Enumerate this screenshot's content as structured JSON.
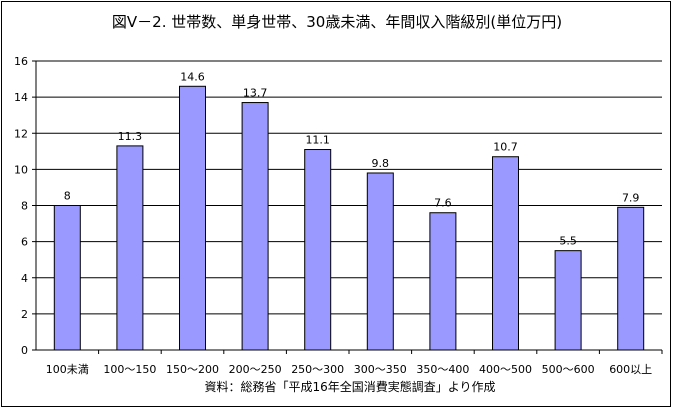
{
  "chart_data": {
    "type": "bar",
    "title": "図Ⅴ－2. 世帯数、単身世帯、30歳未満、年間収入階級別(単位万円)",
    "categories": [
      "100未満",
      "100～150",
      "150～200",
      "200～250",
      "250～300",
      "300～350",
      "350～400",
      "400～500",
      "500～600",
      "600以上"
    ],
    "values": [
      8,
      11.3,
      14.6,
      13.7,
      11.1,
      9.8,
      7.6,
      10.7,
      5.5,
      7.9
    ],
    "value_labels": [
      "8",
      "11.3",
      "14.6",
      "13.7",
      "11.1",
      "9.8",
      "7.6",
      "10.7",
      "5.5",
      "7.9"
    ],
    "ylim": [
      0,
      16
    ],
    "yticks": [
      0,
      2,
      4,
      6,
      8,
      10,
      12,
      14,
      16
    ],
    "grid": true,
    "legend": "none",
    "source_note": "資料：総務省「平成16年全国消費実態調査」より作成",
    "colors": {
      "bar_fill": "#9999ff",
      "bar_stroke": "#000000",
      "grid": "#000000",
      "text": "#000000"
    }
  }
}
